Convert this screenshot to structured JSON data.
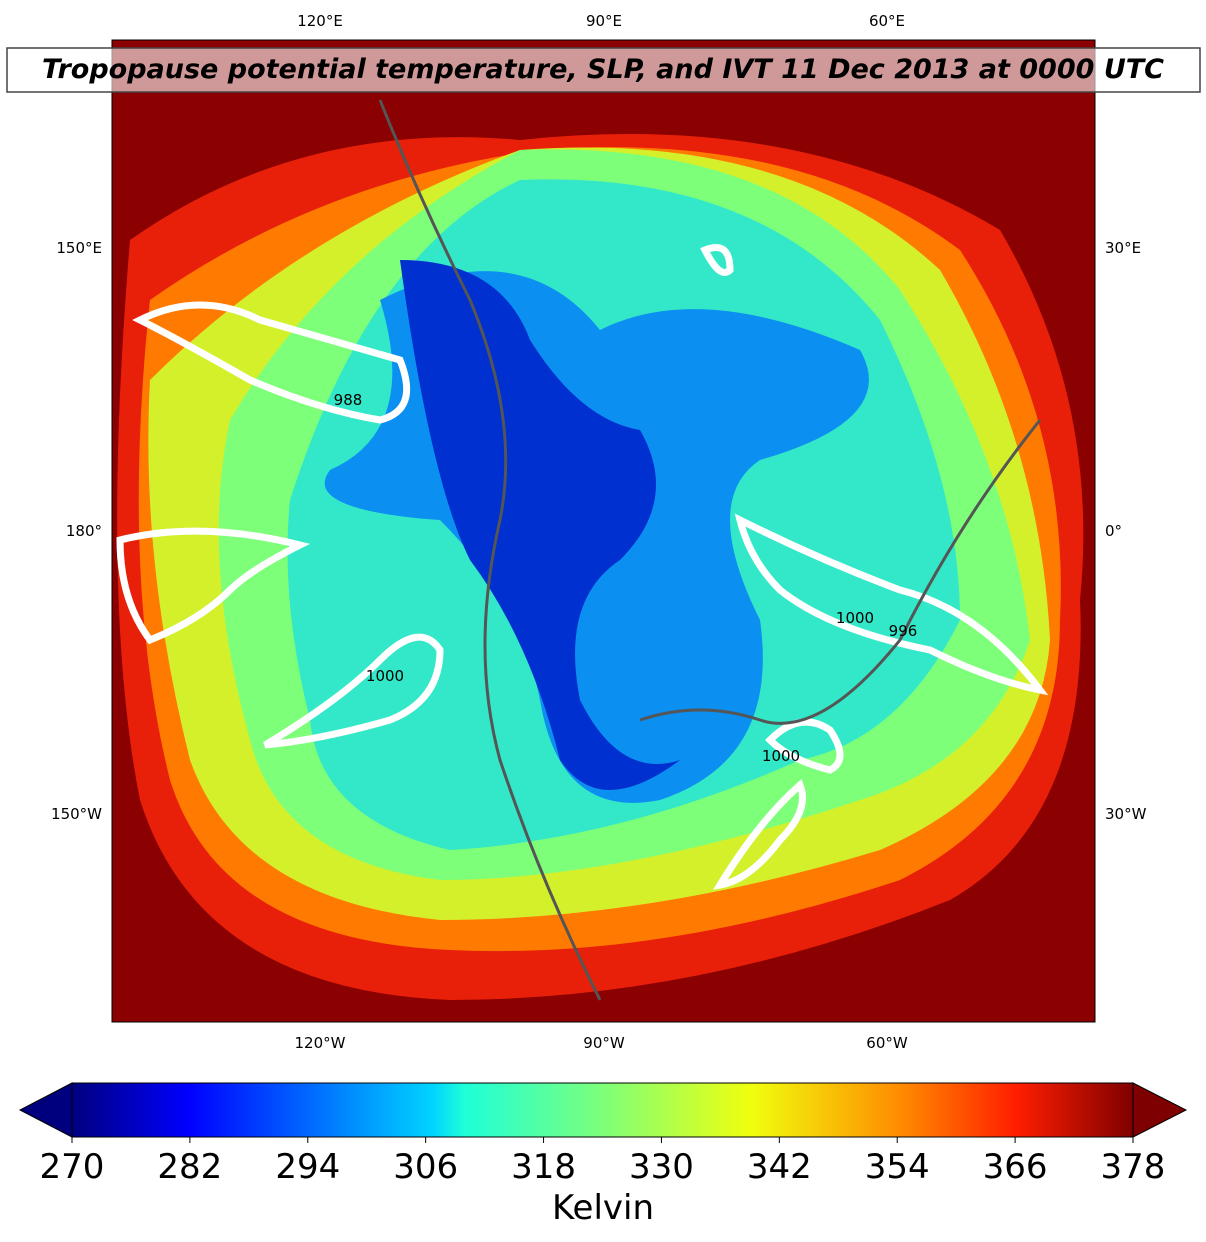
{
  "title": "Tropopause potential temperature, SLP, and IVT 11 Dec 2013 at 0000 UTC",
  "map": {
    "top_labels": [
      "120°E",
      "90°E",
      "60°E"
    ],
    "bottom_labels": [
      "120°W",
      "90°W",
      "60°W"
    ],
    "left_labels": [
      "150°E",
      "180°",
      "150°W"
    ],
    "right_labels": [
      "30°E",
      "0°",
      "30°W"
    ],
    "contour_labels": [
      "988",
      "1000",
      "996",
      "1000",
      "1000"
    ]
  },
  "colorbar": {
    "label": "Kelvin",
    "range": [
      270,
      378
    ],
    "ticks": [
      270,
      282,
      294,
      306,
      318,
      330,
      342,
      354,
      366,
      378
    ]
  }
}
